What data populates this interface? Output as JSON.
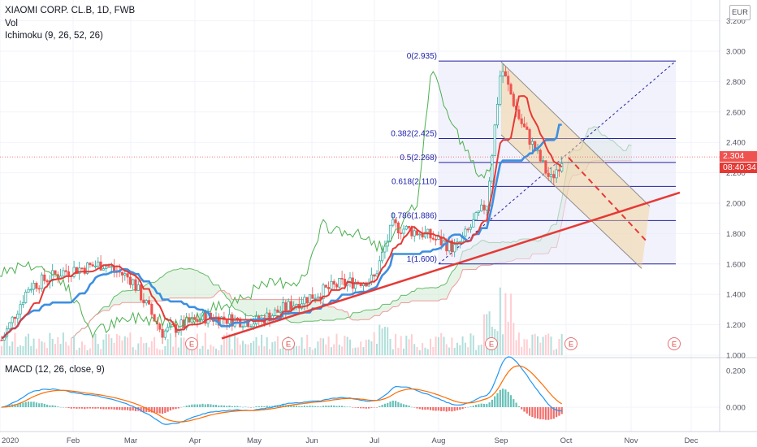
{
  "legend": {
    "symbol": "XIAOMI CORP. CL.B, 1D, FWB",
    "volume": "Vol",
    "ichimoku": "Ichimoku (9, 26, 52, 26)",
    "macd": "MACD (12, 26, close, 9)"
  },
  "currency_badge": "EUR",
  "price_tag": {
    "last": "2.304",
    "countdown": "08:40:34"
  },
  "colors": {
    "candle_up": "#26a69a",
    "candle_down": "#ef5350",
    "conversion": "#e53935",
    "base": "#3d8fe0",
    "lagging": "#4caf50",
    "fib": "#2020a0",
    "trend": "#e53935",
    "channel": "#f5cf8e",
    "macd": "#2196f3",
    "signal": "#ff6d00",
    "last_price": "#ef5350",
    "countdown_bg": "#e53935"
  },
  "chart_data": {
    "type": "candlestick",
    "panes": [
      "price",
      "macd"
    ],
    "x_labels": [
      "2020",
      "Feb",
      "Mar",
      "Apr",
      "May",
      "Jun",
      "Jul",
      "Aug",
      "Sep",
      "Oct",
      "Nov",
      "Dec"
    ],
    "price_axis": {
      "ticks": [
        "3.200",
        "3.000",
        "2.800",
        "2.600",
        "2.400",
        "2.200",
        "2.000",
        "1.800",
        "1.600",
        "1.400",
        "1.200",
        "1.000"
      ]
    },
    "macd_axis": {
      "ticks": [
        "0.200",
        "0.000"
      ]
    },
    "fib_levels": [
      {
        "ratio": "0",
        "price": 2.935,
        "label": "0(2.935)"
      },
      {
        "ratio": "0.382",
        "price": 2.425,
        "label": "0.382(2.425)"
      },
      {
        "ratio": "0.5",
        "price": 2.268,
        "label": "0.5(2.268)"
      },
      {
        "ratio": "0.618",
        "price": 2.11,
        "label": "0.618(2.110)"
      },
      {
        "ratio": "0.786",
        "price": 1.886,
        "label": "0.786(1.886)"
      },
      {
        "ratio": "1",
        "price": 1.6,
        "label": "1(1.600)"
      }
    ],
    "earnings_markers": [
      "E",
      "E",
      "E",
      "E",
      "E"
    ],
    "last_price": 2.304,
    "countdown": "08:40:34",
    "approx_close_path": [
      [
        "2020-01-02",
        1.1
      ],
      [
        "2020-01-15",
        1.45
      ],
      [
        "2020-02-01",
        1.55
      ],
      [
        "2020-02-20",
        1.6
      ],
      [
        "2020-03-05",
        1.5
      ],
      [
        "2020-03-20",
        1.15
      ],
      [
        "2020-04-10",
        1.25
      ],
      [
        "2020-05-05",
        1.22
      ],
      [
        "2020-05-25",
        1.35
      ],
      [
        "2020-06-15",
        1.47
      ],
      [
        "2020-07-01",
        1.5
      ],
      [
        "2020-07-10",
        1.85
      ],
      [
        "2020-07-25",
        1.8
      ],
      [
        "2020-08-10",
        1.7
      ],
      [
        "2020-08-25",
        2.0
      ],
      [
        "2020-09-01",
        2.9
      ],
      [
        "2020-09-10",
        2.55
      ],
      [
        "2020-09-25",
        2.15
      ],
      [
        "2020-10-01",
        2.3
      ]
    ]
  }
}
